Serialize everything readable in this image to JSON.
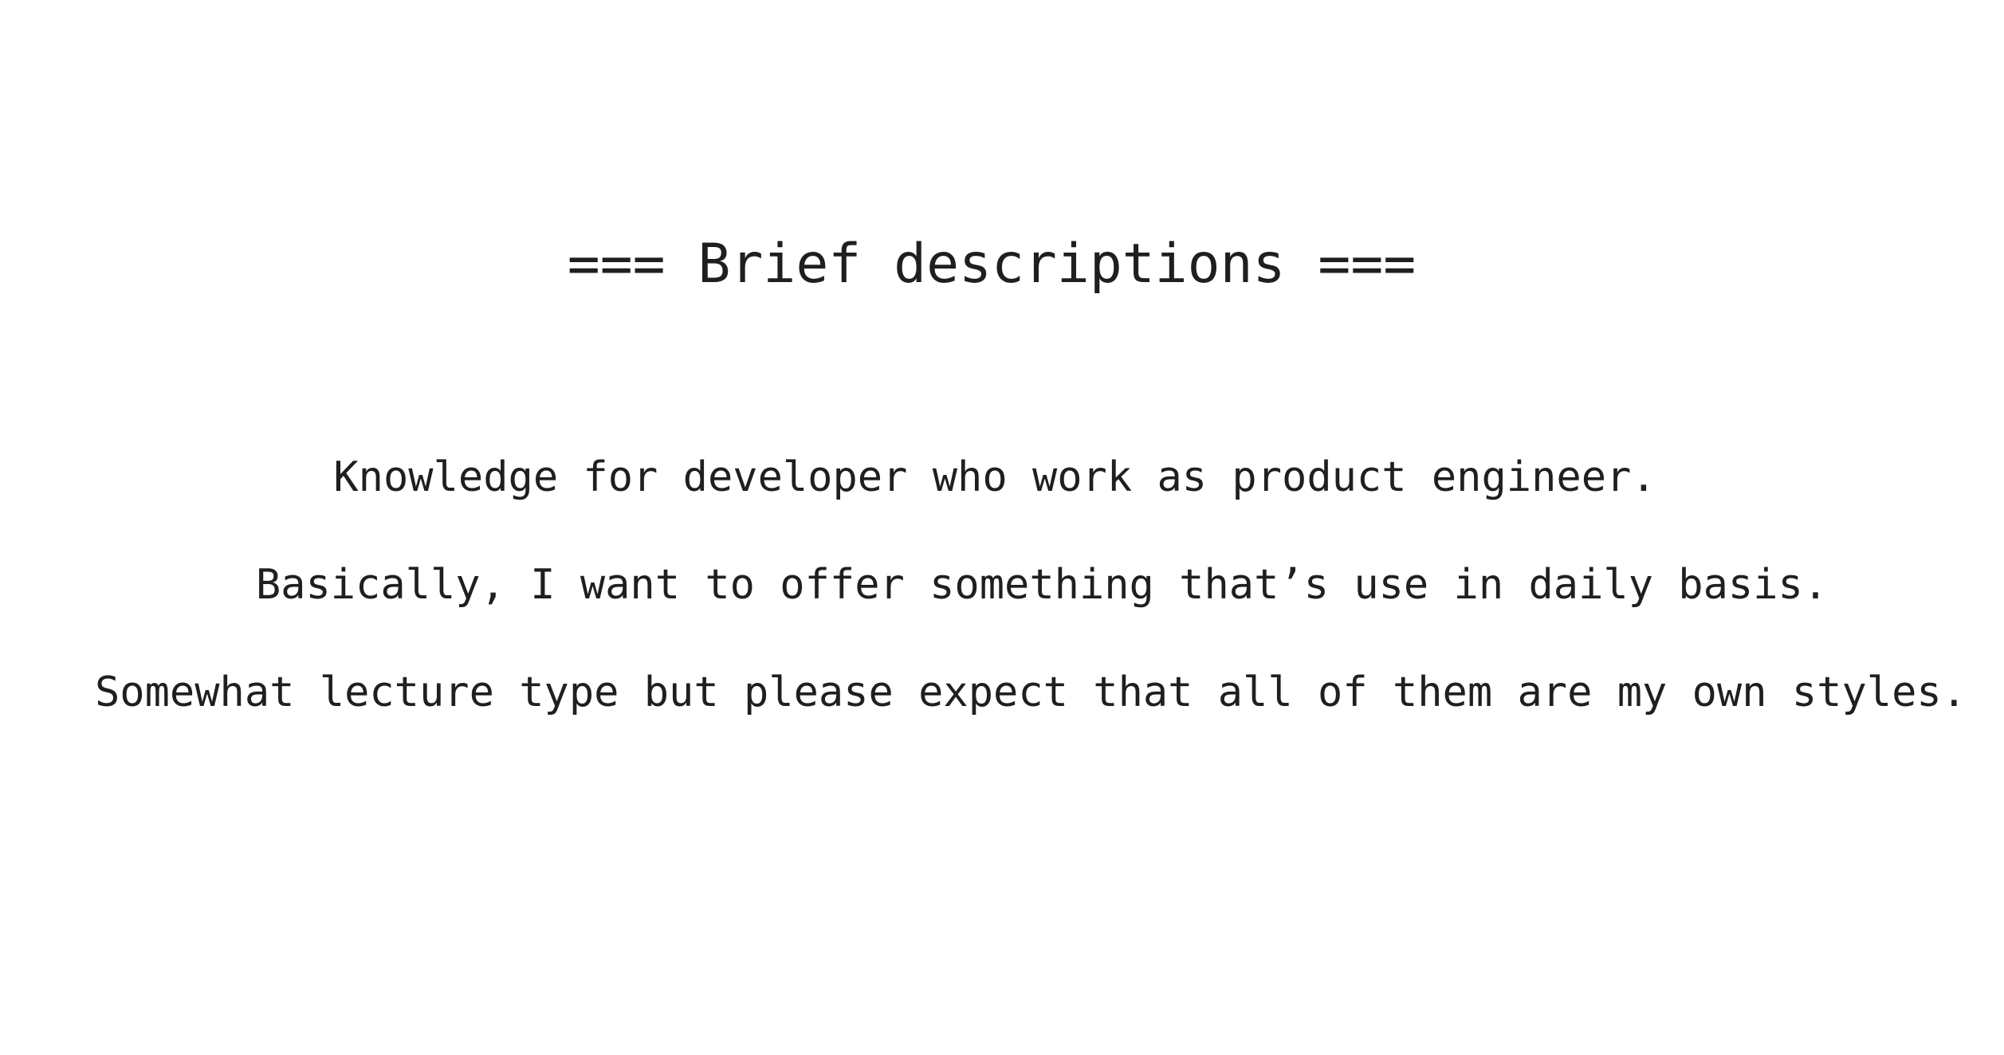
{
  "heading": "=== Brief descriptions ===",
  "lines": [
    "Knowledge for developer who work as product engineer.",
    "Basically, I want to offer something that’s use in daily basis.",
    "Somewhat lecture type but please expect that all of them are my own styles."
  ],
  "colors": {
    "background": "#ffffff",
    "text": "#1f1f1f"
  }
}
